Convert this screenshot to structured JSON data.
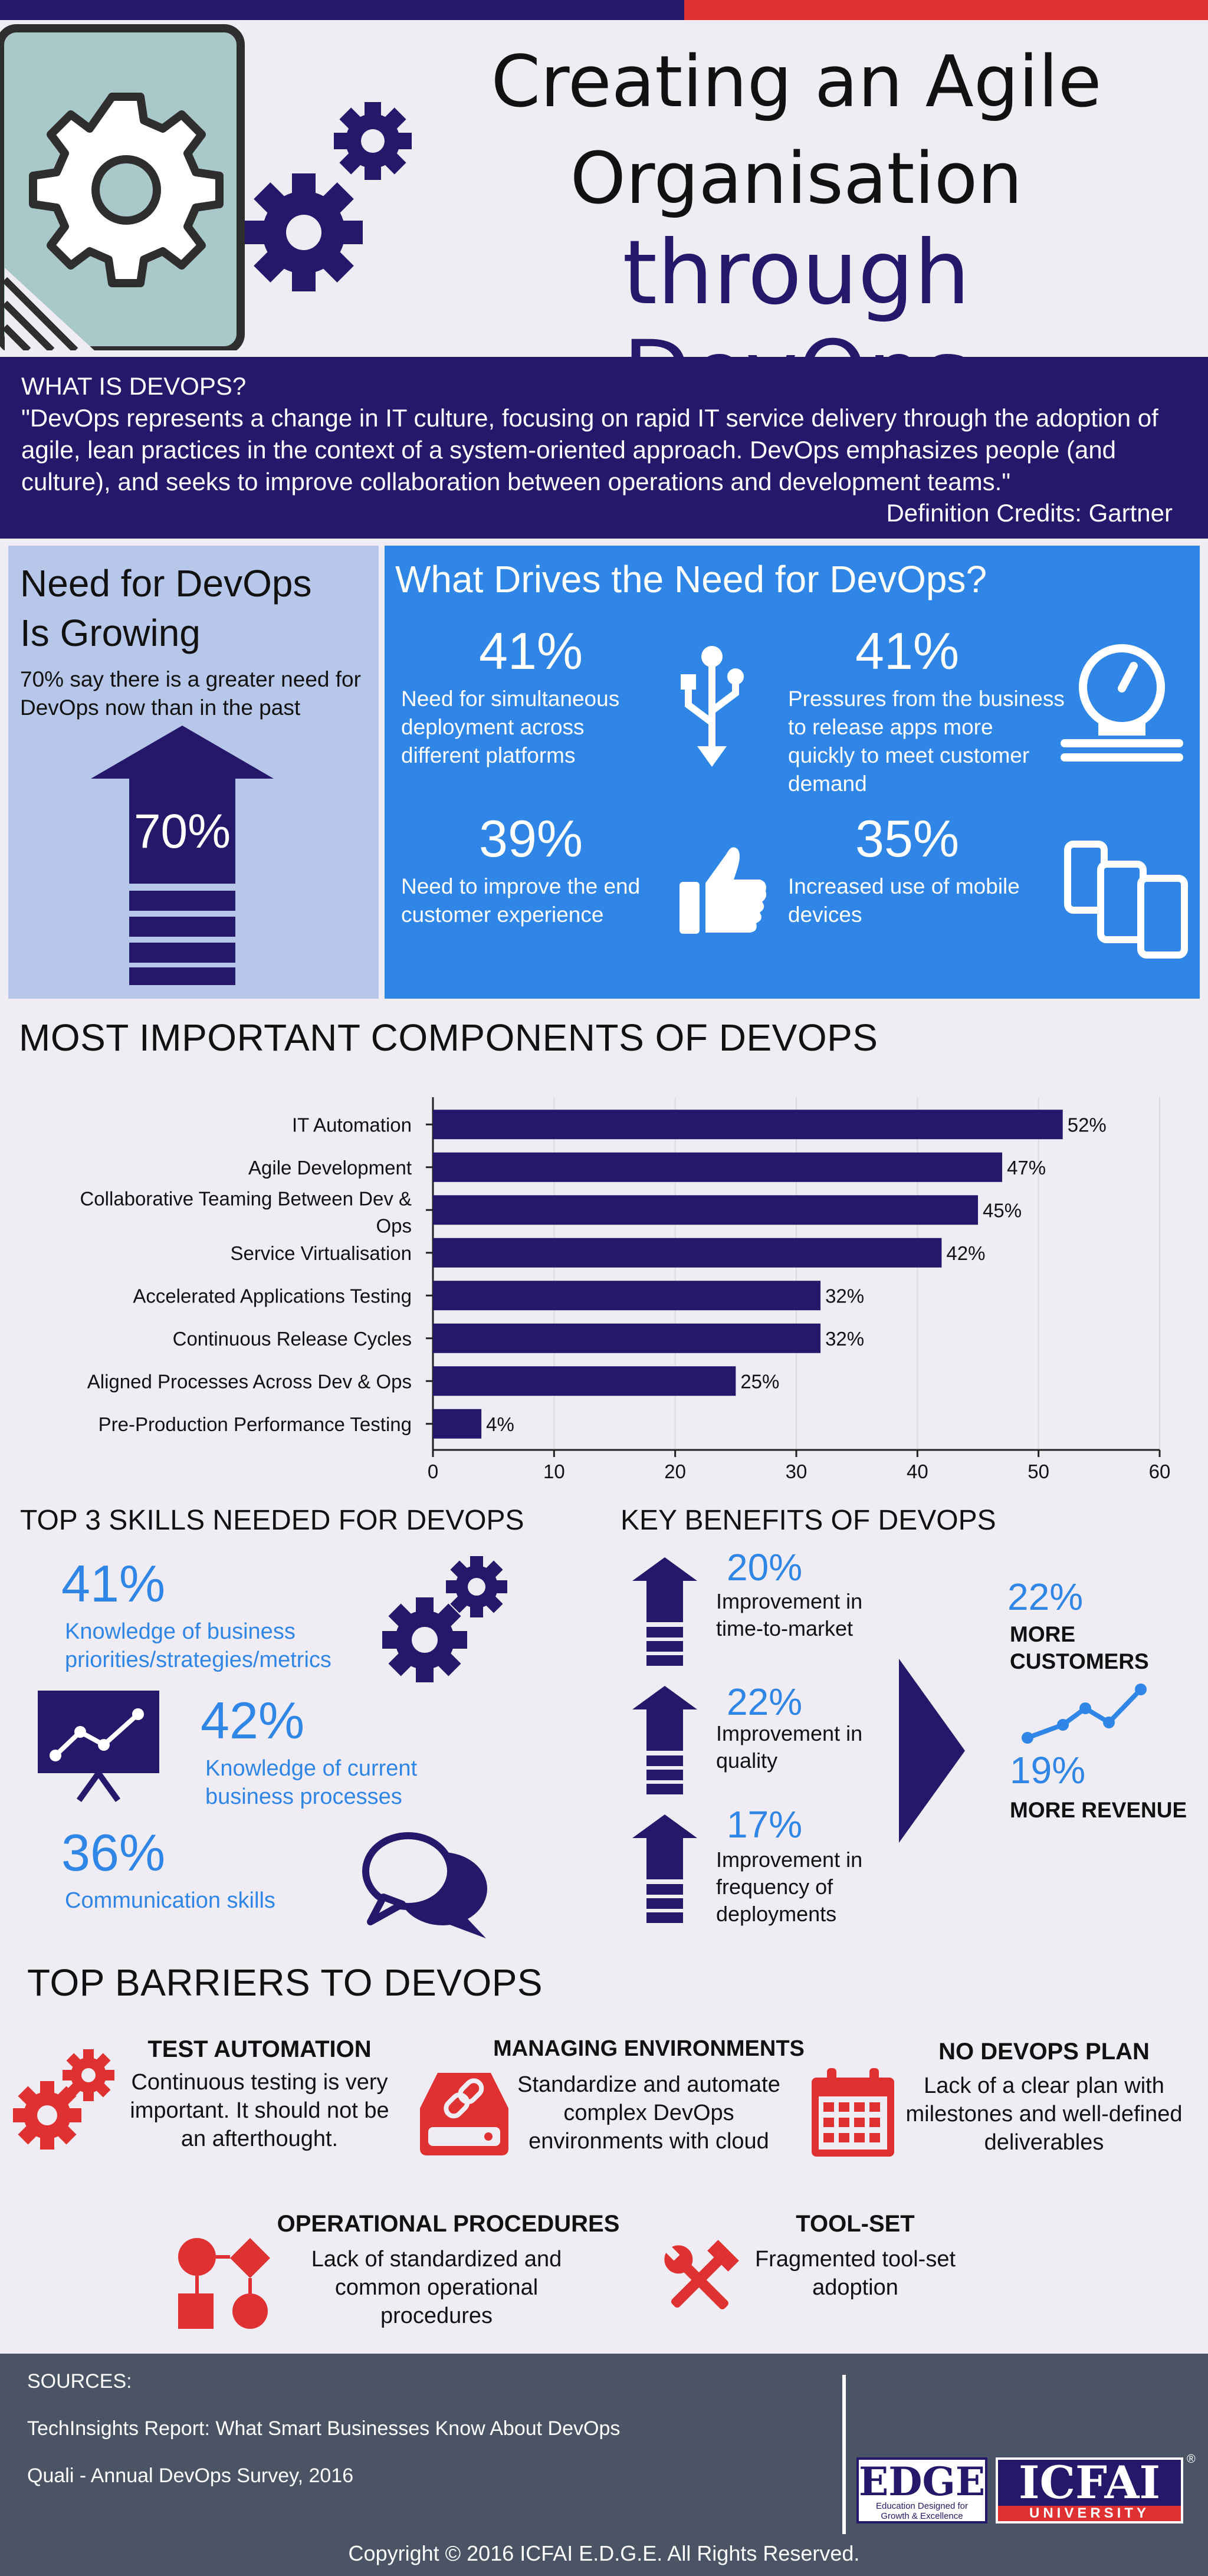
{
  "header": {
    "title_line1": "Creating an Agile",
    "title_line2": "Organisation",
    "title_line3": "through DevOps"
  },
  "what_is": {
    "heading": "WHAT IS DEVOPS?",
    "quote": "\"DevOps represents a change in IT culture, focusing on rapid IT service delivery through the adoption of agile, lean practices in the context of a system-oriented approach. DevOps emphasizes people (and culture), and seeks to improve collaboration between operations and development teams.\"",
    "credit": "Definition Credits: Gartner"
  },
  "need": {
    "title_line1": "Need for DevOps",
    "title_line2": "Is Growing",
    "subtitle": "70% say there is a greater need for DevOps now than in the past",
    "arrow_value": "70%"
  },
  "drivers": {
    "title": "What Drives the Need for DevOps?",
    "items": [
      {
        "pct": "41%",
        "text": "Need for simultaneous deployment across different platforms",
        "icon": "usb-icon"
      },
      {
        "pct": "41%",
        "text": "Pressures from the business to release apps more quickly to meet customer demand",
        "icon": "speedometer-icon"
      },
      {
        "pct": "39%",
        "text": "Need to improve the end customer experience",
        "icon": "thumbs-up-icon"
      },
      {
        "pct": "35%",
        "text": "Increased use of mobile devices",
        "icon": "devices-icon"
      }
    ]
  },
  "components": {
    "title": "MOST IMPORTANT COMPONENTS OF DEVOPS",
    "chart_data": {
      "type": "bar",
      "orientation": "horizontal",
      "categories": [
        "IT Automation",
        "Agile Development",
        "Collaborative Teaming Between Dev & Ops",
        "Service Virtualisation",
        "Accelerated Applications Testing",
        "Continuous Release Cycles",
        "Aligned Processes Across Dev & Ops",
        "Pre-Production Performance Testing"
      ],
      "values": [
        52,
        47,
        45,
        42,
        32,
        32,
        25,
        4
      ],
      "value_labels": [
        "52%",
        "47%",
        "45%",
        "42%",
        "32%",
        "32%",
        "25%",
        "4%"
      ],
      "xlim": [
        0,
        60
      ],
      "xticks": [
        "0",
        "10",
        "20",
        "30",
        "40",
        "50",
        "60"
      ],
      "grid": true,
      "label_line1": [
        "IT Automation",
        "Agile Development",
        "Collaborative Teaming Between Dev &",
        "Service Virtualisation",
        "Accelerated Applications Testing",
        "Continuous Release Cycles",
        "Aligned Processes Across Dev & Ops",
        "Pre-Production Performance Testing"
      ],
      "label_line2": [
        "",
        "",
        "Ops",
        "",
        "",
        "",
        "",
        ""
      ]
    }
  },
  "skills": {
    "title": "TOP 3 SKILLS NEEDED FOR DEVOPS",
    "items": [
      {
        "pct": "41%",
        "text_line1": "Knowledge of business",
        "text_line2": "priorities/strategies/metrics"
      },
      {
        "pct": "42%",
        "text_line1": "Knowledge of current",
        "text_line2": "business processes"
      },
      {
        "pct": "36%",
        "text_line1": "Communication skills",
        "text_line2": ""
      }
    ]
  },
  "benefits": {
    "title": "KEY BENEFITS OF DEVOPS",
    "items": [
      {
        "pct": "20%",
        "text_line1": "Improvement in",
        "text_line2": "time-to-market",
        "text_line3": ""
      },
      {
        "pct": "22%",
        "text_line1": "Improvement in",
        "text_line2": "quality",
        "text_line3": ""
      },
      {
        "pct": "17%",
        "text_line1": "Improvement in",
        "text_line2": "frequency of",
        "text_line3": "deployments"
      }
    ],
    "result1_pct": "22%",
    "result1_text_line1": "MORE",
    "result1_text_line2": "CUSTOMERS",
    "result2_pct": "19%",
    "result2_text": "MORE REVENUE"
  },
  "barriers": {
    "title": "TOP BARRIERS TO DEVOPS",
    "items": [
      {
        "heading": "TEST AUTOMATION",
        "line1": "Continuous testing is very",
        "line2": "important. It should not be",
        "line3": "an afterthought."
      },
      {
        "heading": "MANAGING ENVIRONMENTS",
        "line1": "Standardize and automate",
        "line2": "complex DevOps",
        "line3": "environments with cloud"
      },
      {
        "heading": "NO DEVOPS PLAN",
        "line1": "Lack of a clear plan with",
        "line2": "milestones and well-defined",
        "line3": "deliverables"
      },
      {
        "heading": "OPERATIONAL PROCEDURES",
        "line1": "Lack of standardized and",
        "line2": "common operational",
        "line3": "procedures"
      },
      {
        "heading": "TOOL-SET",
        "line1": "Fragmented tool-set",
        "line2": "adoption",
        "line3": ""
      }
    ]
  },
  "footer": {
    "sources_label": "SOURCES:",
    "source1": "TechInsights Report: What Smart Businesses Know About DevOps",
    "source2": "Quali - Annual DevOps Survey, 2016",
    "logo1_title": "EDGE",
    "logo1_sub1": "Education Designed for",
    "logo1_sub2": "Growth & Excellence",
    "logo2_title": "ICFAI",
    "logo2_sub": "UNIVERSITY",
    "logo2_mark": "®",
    "copyright": "Copyright © 2016 ICFAI E.D.G.E. All Rights Reserved."
  },
  "colors": {
    "navy": "#25186a",
    "red": "#e03132",
    "blue": "#2f86e6",
    "light_blue": "#b7c7ea",
    "footer_gray": "#4a5465"
  }
}
